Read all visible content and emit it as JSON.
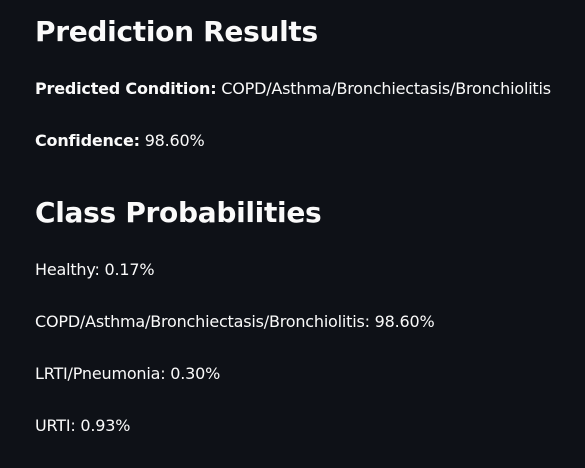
{
  "results": {
    "title": "Prediction Results",
    "predicted_label": "Predicted Condition:",
    "predicted_value": "COPD/Asthma/Bronchiectasis/Bronchiolitis",
    "confidence_label": "Confidence:",
    "confidence_value": "98.60%"
  },
  "probabilities": {
    "title": "Class Probabilities",
    "items": [
      {
        "text": "Healthy: 0.17%"
      },
      {
        "text": "COPD/Asthma/Bronchiectasis/Bronchiolitis: 98.60%"
      },
      {
        "text": "LRTI/Pneumonia: 0.30%"
      },
      {
        "text": "URTI: 0.93%"
      }
    ]
  }
}
